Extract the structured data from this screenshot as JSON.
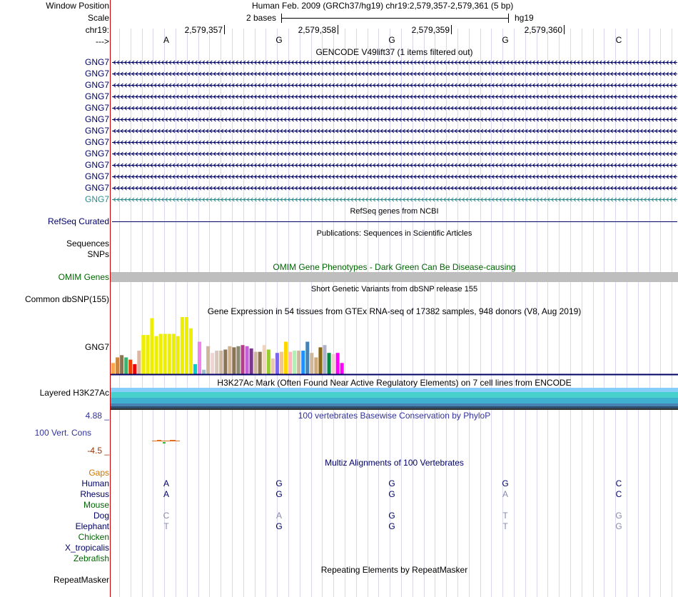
{
  "labels": {
    "window_position": "Window Position",
    "scale": "Scale",
    "chrom": "chr19:",
    "strand": "--->"
  },
  "header": {
    "position_text": "Human Feb. 2009 (GRCh37/hg19)   chr19:2,579,357-2,579,361 (5 bp)",
    "scale_text": "2 bases",
    "assembly": "hg19"
  },
  "ruler": {
    "ticks": [
      "2,579,357",
      "2,579,358",
      "2,579,359",
      "2,579,360"
    ]
  },
  "bases": [
    "A",
    "G",
    "G",
    "G",
    "C"
  ],
  "gencode": {
    "title": "GENCODE V49lift37 (1 items filtered out)",
    "gene": "GNG7",
    "row_count": 13
  },
  "refseq": {
    "label": "RefSeq Curated",
    "title": "RefSeq genes from NCBI"
  },
  "publications": {
    "title": "Publications: Sequences in Scientific Articles",
    "label_sequences": "Sequences",
    "label_snps": "SNPs"
  },
  "omim": {
    "label": "OMIM Genes",
    "title": "OMIM Gene Phenotypes - Dark Green Can Be Disease-causing"
  },
  "dbsnp": {
    "label": "Common dbSNP(155)",
    "title": "Short Genetic Variants from dbSNP release 155"
  },
  "gtex": {
    "label": "GNG7",
    "title": "Gene Expression in 54 tissues from GTEx RNA-seq of 17382 samples, 948 donors (V8, Aug 2019)",
    "values": [
      10,
      15,
      17,
      15,
      13,
      9,
      21,
      35,
      35,
      50,
      34,
      36,
      36,
      36,
      36,
      34,
      51,
      51,
      41,
      9,
      29,
      4,
      25,
      19,
      21,
      21,
      22,
      25,
      24,
      25,
      26,
      25,
      23,
      20,
      20,
      26,
      22,
      14,
      19,
      20,
      29,
      20,
      21,
      21,
      21,
      29,
      19,
      15,
      24,
      26,
      19,
      18,
      19,
      10
    ],
    "colors": [
      "#ffa54f",
      "#cd853f",
      "#8b7355",
      "#3cb371",
      "#ee4000",
      "#ee0000",
      "#ddb8a0",
      "#eeee00",
      "#eeee00",
      "#eeee00",
      "#eeee00",
      "#eeee00",
      "#eeee00",
      "#eeee00",
      "#eeee00",
      "#eeee00",
      "#eeee00",
      "#eeee00",
      "#eeee00",
      "#00cdcd",
      "#ee82ee",
      "#9ac0cd",
      "#cdb79e",
      "#eed5d2",
      "#d8c6b6",
      "#cdb79e",
      "#8b7355",
      "#d2b48c",
      "#8b7355",
      "#8b8970",
      "#b03e89",
      "#c55ed8",
      "#7a378b",
      "#cdb79e",
      "#8b7355",
      "#eed5c0",
      "#9acd32",
      "#e8c8b0",
      "#7a67ee",
      "#eec591",
      "#ffd700",
      "#ffb6c1",
      "#b4eeb4",
      "#cdb79e",
      "#1e90ff",
      "#4682b4",
      "#cdb79e",
      "#cdaa7d",
      "#8b6914",
      "#b0b0c8",
      "#008b45",
      "#eed2c8",
      "#ff00ff",
      "#ff00ff"
    ]
  },
  "h3k27ac": {
    "label": "Layered H3K27Ac",
    "title": "H3K27Ac Mark (Often Found Near Active Regulatory Elements) on 7 cell lines from ENCODE"
  },
  "phylop": {
    "label": "100 Vert. Cons",
    "max": "4.88 _",
    "min": "-4.5 _",
    "title": "100 vertebrates Basewise Conservation by PhyloP"
  },
  "multiz": {
    "title": "Multiz Alignments of 100 Vertebrates",
    "gaps_label": "Gaps",
    "species": [
      {
        "name": "Human",
        "bases": [
          "A",
          "G",
          "G",
          "G",
          "C"
        ],
        "faded": [
          false,
          false,
          false,
          false,
          false
        ]
      },
      {
        "name": "Rhesus",
        "bases": [
          "A",
          "G",
          "G",
          "A",
          "C"
        ],
        "faded": [
          false,
          false,
          false,
          true,
          false
        ]
      },
      {
        "name": "Mouse",
        "bases": [
          "",
          "",
          "",
          "",
          ""
        ],
        "faded": [
          false,
          false,
          false,
          false,
          false
        ]
      },
      {
        "name": "Dog",
        "bases": [
          "C",
          "A",
          "G",
          "T",
          "G"
        ],
        "faded": [
          true,
          true,
          false,
          true,
          true
        ]
      },
      {
        "name": "Elephant",
        "bases": [
          "T",
          "G",
          "G",
          "T",
          "G"
        ],
        "faded": [
          true,
          false,
          false,
          true,
          true
        ]
      },
      {
        "name": "Chicken",
        "bases": [
          "",
          "",
          "",
          "",
          ""
        ],
        "faded": [
          false,
          false,
          false,
          false,
          false
        ]
      },
      {
        "name": "X_tropicalis",
        "bases": [
          "",
          "",
          "",
          "",
          ""
        ],
        "faded": [
          false,
          false,
          false,
          false,
          false
        ]
      },
      {
        "name": "Zebrafish",
        "bases": [
          "",
          "",
          "",
          "",
          ""
        ],
        "faded": [
          false,
          false,
          false,
          false,
          false
        ]
      }
    ],
    "species_colors": [
      "#000066",
      "#000066",
      "#006600",
      "#000066",
      "#000066",
      "#006600",
      "#000066",
      "#006600"
    ]
  },
  "repeatmasker": {
    "label": "RepeatMasker",
    "title": "Repeating Elements by RepeatMasker"
  },
  "colors": {
    "navy": "#000066",
    "gencode_last": "#2e8b8b",
    "omim_bar": "#bebebe",
    "h3k27ac_layers": [
      "#87cefa",
      "#48d1cc",
      "#40b0d0",
      "#4682b4",
      "#2f4f6f",
      "#333333"
    ]
  }
}
